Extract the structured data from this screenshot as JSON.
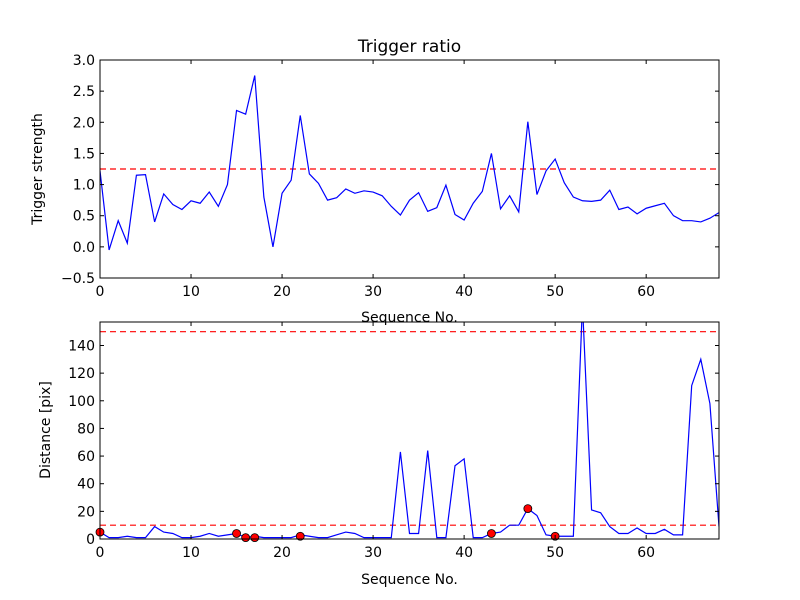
{
  "chart_data": [
    {
      "type": "line",
      "title": "Trigger ratio",
      "xlabel": "Sequence No.",
      "ylabel": "Trigger strength",
      "xlim": [
        0,
        68
      ],
      "ylim": [
        -0.5,
        3.0
      ],
      "xticks": [
        0,
        10,
        20,
        30,
        40,
        50,
        60
      ],
      "yticks": [
        -0.5,
        0.0,
        0.5,
        1.0,
        1.5,
        2.0,
        2.5,
        3.0
      ],
      "ytick_labels": [
        "−0.5",
        "0.0",
        "0.5",
        "1.0",
        "1.5",
        "2.0",
        "2.5",
        "3.0"
      ],
      "xtick_labels": [
        "0",
        "10",
        "20",
        "30",
        "40",
        "50",
        "60"
      ],
      "series_color": "#0000ff",
      "threshold": 1.25,
      "threshold_color": "#ff0000",
      "series": [
        {
          "x": [
            0,
            1,
            2,
            3,
            4,
            5,
            6,
            7,
            8,
            9,
            10,
            11,
            12,
            13,
            14,
            15,
            16,
            17,
            18,
            19,
            20,
            21,
            22,
            23,
            24,
            25,
            26,
            27,
            28,
            29,
            30,
            31,
            32,
            33,
            34,
            35,
            36,
            37,
            38,
            39,
            40,
            41,
            42,
            43,
            44,
            45,
            46,
            47,
            48,
            49,
            50,
            51,
            52,
            53,
            54,
            55,
            56,
            57,
            58,
            59,
            60,
            61,
            62,
            63,
            64,
            65,
            66,
            67,
            68
          ],
          "values": [
            1.22,
            -0.05,
            0.42,
            0.06,
            1.15,
            1.16,
            0.4,
            0.85,
            0.68,
            0.6,
            0.74,
            0.7,
            0.88,
            0.65,
            1.0,
            2.19,
            2.13,
            2.75,
            0.8,
            0.0,
            0.86,
            1.07,
            2.11,
            1.17,
            1.02,
            0.75,
            0.79,
            0.93,
            0.86,
            0.9,
            0.88,
            0.82,
            0.65,
            0.51,
            0.75,
            0.87,
            0.57,
            0.63,
            0.99,
            0.52,
            0.43,
            0.7,
            0.89,
            1.5,
            0.61,
            0.82,
            0.56,
            2.01,
            0.84,
            1.22,
            1.41,
            1.03,
            0.8,
            0.74,
            0.73,
            0.75,
            0.91,
            0.6,
            0.64,
            0.53,
            0.62,
            0.66,
            0.7,
            0.5,
            0.42,
            0.42,
            0.4,
            0.46,
            0.55
          ]
        }
      ]
    },
    {
      "type": "line",
      "title": "",
      "xlabel": "Sequence No.",
      "ylabel": "Distance [pix]",
      "xlim": [
        0,
        68
      ],
      "ylim": [
        0,
        157
      ],
      "xticks": [
        0,
        10,
        20,
        30,
        40,
        50,
        60
      ],
      "yticks": [
        0,
        20,
        40,
        60,
        80,
        100,
        120,
        140
      ],
      "ytick_labels": [
        "0",
        "20",
        "40",
        "60",
        "80",
        "100",
        "120",
        "140"
      ],
      "xtick_labels": [
        "0",
        "10",
        "20",
        "30",
        "40",
        "50",
        "60"
      ],
      "series_color": "#0000ff",
      "thresholds": [
        150,
        10
      ],
      "threshold_color": "#ff0000",
      "marker_color": "#ff0000",
      "series": [
        {
          "x": [
            0,
            1,
            2,
            3,
            4,
            5,
            6,
            7,
            8,
            9,
            10,
            11,
            12,
            13,
            14,
            15,
            16,
            17,
            18,
            19,
            20,
            21,
            22,
            23,
            24,
            25,
            26,
            27,
            28,
            29,
            30,
            31,
            32,
            33,
            34,
            35,
            36,
            37,
            38,
            39,
            40,
            41,
            42,
            43,
            44,
            45,
            46,
            47,
            48,
            49,
            50,
            51,
            52,
            53,
            54,
            55,
            56,
            57,
            58,
            59,
            60,
            61,
            62,
            63,
            64,
            65,
            66,
            67,
            68
          ],
          "values": [
            5,
            1,
            1,
            2,
            1,
            1,
            9,
            5,
            4,
            1,
            1,
            2,
            4,
            2,
            3,
            4,
            1,
            2,
            1,
            1,
            1,
            1,
            3,
            2,
            1,
            1,
            3,
            5,
            4,
            1,
            1,
            1,
            1,
            63,
            4,
            4,
            64,
            1,
            1,
            53,
            58,
            1,
            1,
            4,
            5,
            10,
            10,
            22,
            17,
            3,
            2,
            2,
            2,
            170,
            21,
            19,
            9,
            4,
            4,
            8,
            4,
            4,
            7,
            3,
            3,
            111,
            130,
            98,
            9
          ]
        }
      ],
      "markers": {
        "x": [
          0,
          15,
          16,
          17,
          22,
          43,
          47,
          50
        ],
        "values": [
          5,
          4,
          1,
          1,
          2,
          4,
          22,
          2
        ]
      }
    }
  ]
}
